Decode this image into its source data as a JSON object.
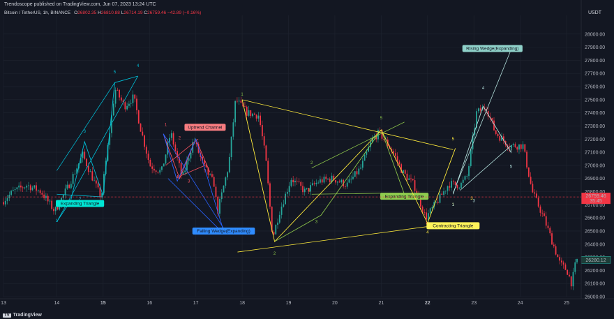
{
  "header": {
    "publisher_line": "Trendoscope published on TradingView.com, Jun 07, 2023 13:24 UTC"
  },
  "symbol": {
    "name": "Bitcoin / TetherUS, 1h, BINANCE",
    "open_label": "O",
    "open": "26802.35",
    "high_label": "H",
    "high": "26810.88",
    "low_label": "L",
    "low": "26714.19",
    "close_label": "C",
    "close": "26759.46",
    "change": "−42.89 (−0.16%)"
  },
  "currency": "USDT",
  "footer": {
    "brand": "TradingView",
    "logo_text": "TV"
  },
  "colors": {
    "background": "#131722",
    "up_candle": "#26a69a",
    "down_candle": "#f23645",
    "current_price": "#f23645",
    "grid": "#1f2430"
  },
  "chart_data": {
    "type": "candlestick",
    "ylim": [
      26000,
      28100
    ],
    "y_ticks": [
      "26000.00",
      "26100.00",
      "26200.00",
      "26300.00",
      "26400.00",
      "26500.00",
      "26600.00",
      "26700.00",
      "26800.00",
      "26900.00",
      "27000.00",
      "27100.00",
      "27200.00",
      "27300.00",
      "27400.00",
      "27500.00",
      "27600.00",
      "27700.00",
      "27800.00",
      "27900.00",
      "28000.00"
    ],
    "x_ticks": [
      {
        "label": "13",
        "x": 12.85,
        "bold": false
      },
      {
        "label": "14",
        "x": 14,
        "bold": false
      },
      {
        "label": "15",
        "x": 15,
        "bold": true
      },
      {
        "label": "16",
        "x": 16,
        "bold": false
      },
      {
        "label": "17",
        "x": 17,
        "bold": false
      },
      {
        "label": "18",
        "x": 18,
        "bold": false
      },
      {
        "label": "19",
        "x": 19,
        "bold": false
      },
      {
        "label": "20",
        "x": 20,
        "bold": false
      },
      {
        "label": "21",
        "x": 21,
        "bold": false
      },
      {
        "label": "22",
        "x": 22,
        "bold": true
      },
      {
        "label": "23",
        "x": 23,
        "bold": false
      },
      {
        "label": "24",
        "x": 24,
        "bold": false
      },
      {
        "label": "25",
        "x": 25,
        "bold": false
      }
    ],
    "current_price": {
      "value": 26759.46,
      "label": "26759.46",
      "countdown": "35:45"
    },
    "last_price": {
      "value": 26280.12,
      "label": "26280.12"
    },
    "price_path": [
      [
        12.85,
        26720
      ],
      [
        13.1,
        26800
      ],
      [
        13.4,
        26850
      ],
      [
        13.7,
        26800
      ],
      [
        14.0,
        26650
      ],
      [
        14.3,
        26850
      ],
      [
        14.6,
        27080
      ],
      [
        15.0,
        26750
      ],
      [
        15.3,
        27580
      ],
      [
        15.5,
        27450
      ],
      [
        15.7,
        27520
      ],
      [
        15.85,
        27280
      ],
      [
        16.05,
        27000
      ],
      [
        16.3,
        26950
      ],
      [
        16.5,
        27250
      ],
      [
        16.75,
        26900
      ],
      [
        17.0,
        27200
      ],
      [
        17.2,
        27000
      ],
      [
        17.45,
        26850
      ],
      [
        17.5,
        26630
      ],
      [
        17.75,
        27000
      ],
      [
        17.9,
        27500
      ],
      [
        18.15,
        27400
      ],
      [
        18.4,
        27380
      ],
      [
        18.55,
        27050
      ],
      [
        18.7,
        26450
      ],
      [
        18.85,
        26650
      ],
      [
        19.1,
        26900
      ],
      [
        19.4,
        26800
      ],
      [
        19.7,
        26880
      ],
      [
        20.0,
        26900
      ],
      [
        20.3,
        26850
      ],
      [
        20.6,
        26980
      ],
      [
        20.85,
        27200
      ],
      [
        21.0,
        27250
      ],
      [
        21.3,
        27100
      ],
      [
        21.5,
        26950
      ],
      [
        21.75,
        26850
      ],
      [
        22.0,
        26600
      ],
      [
        22.3,
        26750
      ],
      [
        22.5,
        26860
      ],
      [
        22.75,
        26850
      ],
      [
        22.9,
        26920
      ],
      [
        23.1,
        27400
      ],
      [
        23.3,
        27450
      ],
      [
        23.5,
        27250
      ],
      [
        23.8,
        27150
      ],
      [
        24.1,
        27150
      ],
      [
        24.3,
        26800
      ],
      [
        24.55,
        26600
      ],
      [
        24.75,
        26400
      ],
      [
        24.9,
        26250
      ],
      [
        25.05,
        26200
      ],
      [
        25.15,
        26100
      ],
      [
        25.25,
        26280
      ]
    ],
    "patterns": [
      {
        "name": "Expanding Triangle",
        "color": "#00bcd4",
        "label_bg": "#00e5d4",
        "label_x": 14.5,
        "label_y": 26710,
        "pivots": [
          [
            14.0,
            26570
          ],
          [
            14.3,
            26730
          ],
          [
            14.6,
            27180
          ],
          [
            15.0,
            26770
          ],
          [
            15.25,
            27630
          ],
          [
            15.75,
            27680
          ]
        ],
        "pivot_labels": [
          [
            "1",
            14.0,
            26570
          ],
          [
            "2",
            14.5,
            26735
          ],
          [
            "3",
            14.6,
            27250
          ],
          [
            "",
            "",
            ""
          ],
          [
            "5",
            15.25,
            27700
          ],
          [
            "4",
            15.75,
            27750
          ]
        ],
        "lines": [
          [
            [
              14.0,
              26570
            ],
            [
              15.75,
              27680
            ]
          ],
          [
            [
              14.0,
              26960
            ],
            [
              15.25,
              27630
            ]
          ],
          [
            [
              14.0,
              26780
            ],
            [
              15.0,
              26760
            ]
          ]
        ]
      },
      {
        "name": "Uptrend Channel",
        "color": "#f7525f",
        "label_bg": "#f77c80",
        "label_x": 17.2,
        "label_y": 27290,
        "pivots": [
          [
            16.3,
            27240
          ],
          [
            16.65,
            26900
          ],
          [
            17.0,
            27200
          ],
          [
            17.3,
            26950
          ]
        ],
        "pivot_labels": [
          [
            "1",
            16.35,
            27300
          ],
          [
            "2",
            16.65,
            27200
          ],
          [
            "3",
            16.85,
            26870
          ],
          [
            "4",
            16.6,
            26900
          ],
          [
            "5",
            17.2,
            26950
          ]
        ],
        "lines": [
          [
            [
              16.35,
              27000
            ],
            [
              17.05,
              27200
            ]
          ],
          [
            [
              16.6,
              26910
            ],
            [
              17.2,
              27000
            ]
          ]
        ]
      },
      {
        "name": "Falling Wedge(Expanding)",
        "color": "#2962ff",
        "label_bg": "#2f8cff",
        "label_x": 17.6,
        "label_y": 26500,
        "pivots": [
          [
            16.3,
            27240
          ],
          [
            16.6,
            26880
          ],
          [
            17.0,
            27200
          ],
          [
            17.6,
            26500
          ]
        ],
        "lines": [
          [
            [
              16.3,
              27240
            ],
            [
              17.6,
              26520
            ]
          ],
          [
            [
              16.4,
              26900
            ],
            [
              17.6,
              26480
            ]
          ]
        ]
      },
      {
        "name": "Expanding Triangle",
        "color": "#8bc34a",
        "label_bg": "#8fcc4e",
        "label_x": 21.5,
        "label_y": 26765,
        "pivots": [
          [
            18.7,
            26420
          ],
          [
            19.7,
            26620
          ],
          [
            21.0,
            27270
          ],
          [
            21.5,
            26780
          ]
        ],
        "pivot_labels": [
          [
            "1",
            18.0,
            27530
          ],
          [
            "2",
            18.7,
            26320
          ],
          [
            "3",
            19.6,
            26560
          ],
          [
            "5",
            21.0,
            27350
          ],
          [
            "2",
            19.5,
            27010
          ],
          [
            "1",
            19.45,
            26800
          ]
        ],
        "lines": [
          [
            [
              19.5,
              26980
            ],
            [
              21.5,
              27330
            ]
          ],
          [
            [
              19.5,
              26780
            ],
            [
              21.5,
              26790
            ]
          ]
        ]
      },
      {
        "name": "Contracting Triangle",
        "color": "#ffeb3b",
        "label_bg": "#fff35a",
        "label_x": 22.55,
        "label_y": 26540,
        "pivots": [
          [
            18.0,
            27500
          ],
          [
            18.7,
            26420
          ],
          [
            21.0,
            27270
          ],
          [
            22.0,
            26560
          ],
          [
            22.6,
            27130
          ]
        ],
        "pivot_labels": [
          [
            "5",
            22.55,
            27190
          ],
          [
            "4",
            22.0,
            26480
          ],
          [
            "1",
            22.55,
            26690
          ],
          [
            "3",
            22.95,
            26740
          ]
        ],
        "lines": [
          [
            [
              18.0,
              27500
            ],
            [
              22.55,
              27120
            ]
          ],
          [
            [
              17.9,
              26340
            ],
            [
              22.55,
              26560
            ]
          ]
        ]
      },
      {
        "name": "Rising Wedge(Expanding)",
        "color": "#b2dfdb",
        "label_bg": "#8fd1c9",
        "label_x": 23.4,
        "label_y": 27890,
        "pivots": [
          [
            22.55,
            26780
          ],
          [
            23.2,
            27450
          ],
          [
            23.8,
            27100
          ],
          [
            23.8,
            27130
          ]
        ],
        "pivot_labels": [
          [
            "4",
            23.2,
            27580
          ],
          [
            "5",
            23.8,
            26980
          ],
          [
            "3",
            23.0,
            26720
          ],
          [
            "1",
            22.55,
            26690
          ]
        ],
        "lines": [
          [
            [
              22.55,
              26790
            ],
            [
              23.8,
              27880
            ]
          ],
          [
            [
              22.7,
              26810
            ],
            [
              23.8,
              27150
            ]
          ]
        ]
      }
    ]
  }
}
